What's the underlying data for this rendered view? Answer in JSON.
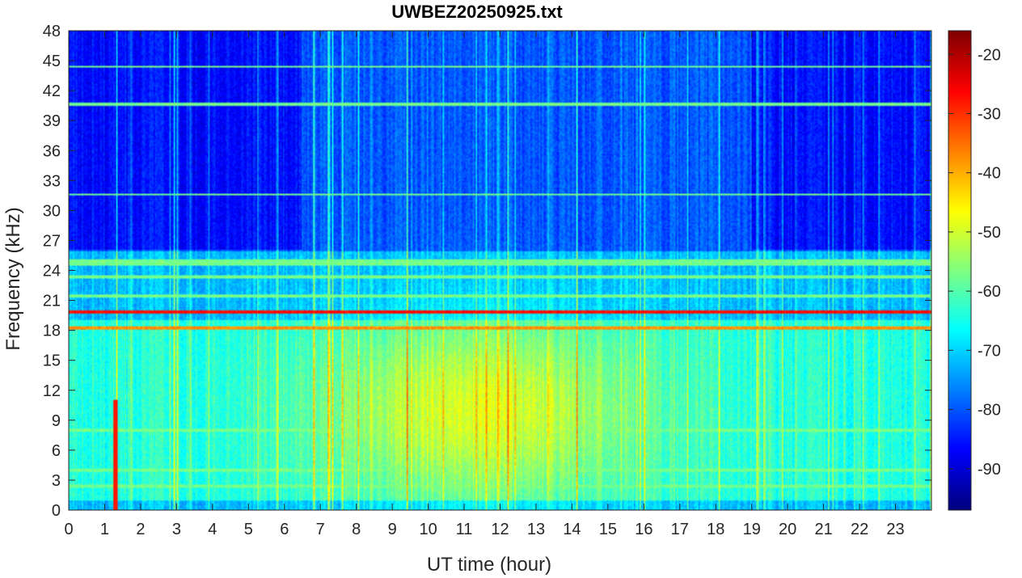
{
  "chart_data": {
    "type": "heatmap",
    "title": "UWBEZ20250925.txt",
    "xlabel": "UT time (hour)",
    "ylabel": "Frequency (kHz)",
    "xlim": [
      0,
      24
    ],
    "ylim": [
      0,
      48
    ],
    "x_ticks": [
      0,
      1,
      2,
      3,
      4,
      5,
      6,
      7,
      8,
      9,
      10,
      11,
      12,
      13,
      14,
      15,
      16,
      17,
      18,
      19,
      20,
      21,
      22,
      23
    ],
    "y_ticks": [
      0,
      3,
      6,
      9,
      12,
      15,
      18,
      21,
      24,
      27,
      30,
      33,
      36,
      39,
      42,
      45,
      48
    ],
    "colorbar": {
      "colormap": "jet",
      "range": [
        -97,
        -16
      ],
      "ticks": [
        -20,
        -30,
        -40,
        -50,
        -60,
        -70,
        -80,
        -90
      ]
    },
    "features": {
      "strong_lines_khz": [
        19.8,
        18.2
      ],
      "weak_lines_khz": [
        21.4,
        23.4,
        24.6,
        25.0,
        31.6,
        40.6,
        44.4,
        4.0,
        2.4,
        8.0
      ],
      "broadband_peak": {
        "time_hour": 11.5,
        "freq_khz": 10,
        "level_db": -50
      },
      "vertical_spikes_hour": [
        1.3,
        2.9,
        3.0,
        6.8,
        7.2,
        7.3,
        9.4,
        12.2,
        14.1,
        16.0
      ],
      "spike_burst": {
        "time_hour": 1.3,
        "freq_range_khz": [
          0,
          11
        ],
        "level_db": -28
      }
    }
  }
}
